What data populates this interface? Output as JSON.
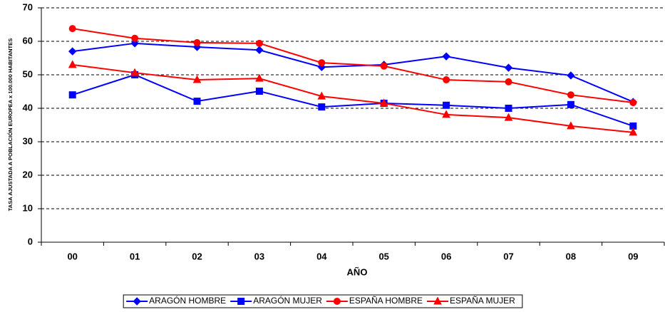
{
  "chart_data": {
    "type": "line",
    "x_label": "AÑO",
    "y_label": "TASA AJUSTADA A POBLACIÓN EUROPEA x 100.000 HABITANTES",
    "categories": [
      "00",
      "01",
      "02",
      "03",
      "04",
      "05",
      "06",
      "07",
      "08",
      "09"
    ],
    "ylim": [
      0,
      70
    ],
    "yticks": [
      0,
      10,
      20,
      30,
      40,
      50,
      60,
      70
    ],
    "grid": true,
    "legend": "bottom",
    "series": [
      {
        "name": "ARAGÓN HOMBRE",
        "color": "#0000ff",
        "marker": "diamond",
        "values": [
          57.0,
          59.4,
          58.3,
          57.4,
          52.3,
          53.0,
          55.5,
          52.1,
          49.8,
          41.9
        ]
      },
      {
        "name": "ARAGÓN MUJER",
        "color": "#0000ff",
        "marker": "square",
        "values": [
          44.0,
          50.0,
          42.1,
          45.1,
          40.4,
          41.5,
          40.9,
          40.0,
          41.1,
          34.7
        ]
      },
      {
        "name": "ESPAÑA HOMBRE",
        "color": "#ff0000",
        "marker": "circle",
        "values": [
          63.8,
          60.9,
          59.6,
          59.4,
          53.6,
          52.6,
          48.5,
          47.9,
          44.0,
          41.7
        ]
      },
      {
        "name": "ESPAÑA MUJER",
        "color": "#ff0000",
        "marker": "triangle",
        "values": [
          53.0,
          50.6,
          48.5,
          48.9,
          43.6,
          41.5,
          38.1,
          37.2,
          34.7,
          32.8
        ]
      }
    ]
  }
}
